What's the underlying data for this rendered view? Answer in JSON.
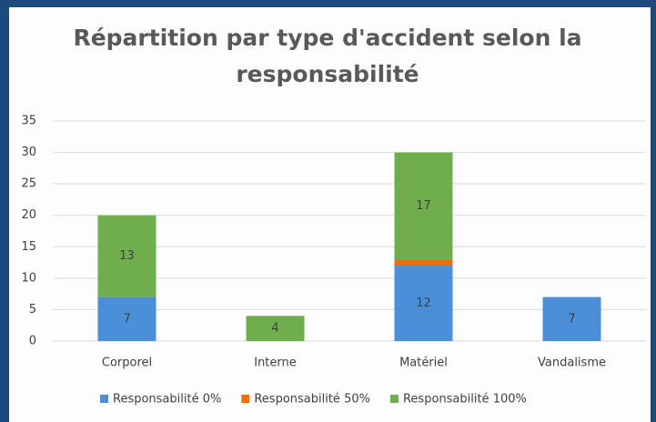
{
  "chart_data": {
    "type": "stacked_bar",
    "title": "Répartition par type d'accident selon la responsabilité",
    "categories": [
      "Corporel",
      "Interne",
      "Matériel",
      "Vandalisme"
    ],
    "series": [
      {
        "name": "Responsabilité 0%",
        "color": "#4a8fd8",
        "values": [
          7,
          0,
          12,
          7
        ],
        "data_labels": true
      },
      {
        "name": "Responsabilité 50%",
        "color": "#e8700e",
        "values": [
          0,
          0,
          1,
          0
        ],
        "data_labels": false
      },
      {
        "name": "Responsabilité 100%",
        "color": "#6fae4c",
        "values": [
          13,
          4,
          17,
          0
        ],
        "data_labels": true
      }
    ],
    "ylim": [
      0,
      35
    ],
    "yticks": [
      0,
      5,
      10,
      15,
      20,
      25,
      30,
      35
    ],
    "grid": true,
    "legend": "bottom"
  }
}
